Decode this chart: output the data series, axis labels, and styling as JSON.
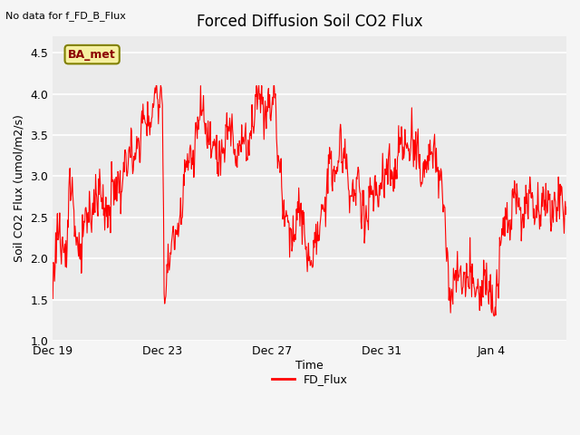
{
  "title": "Forced Diffusion Soil CO2 Flux",
  "xlabel": "Time",
  "ylabel": "Soil CO2 Flux (umol/m2/s)",
  "ylim": [
    1.0,
    4.7
  ],
  "yticks": [
    1.0,
    1.5,
    2.0,
    2.5,
    3.0,
    3.5,
    4.0,
    4.5
  ],
  "line_color": "red",
  "line_width": 0.8,
  "plot_bg_color": "#ebebeb",
  "fig_bg_color": "#f5f5f5",
  "legend_label": "FD_Flux",
  "top_left_text": "No data for f_FD_B_Flux",
  "annotation_text": "BA_met",
  "x_tick_labels": [
    "Dec 19",
    "Dec 23",
    "Dec 27",
    "Dec 31",
    "Jan 4"
  ],
  "grid_color": "white",
  "grid_lw": 1.2
}
